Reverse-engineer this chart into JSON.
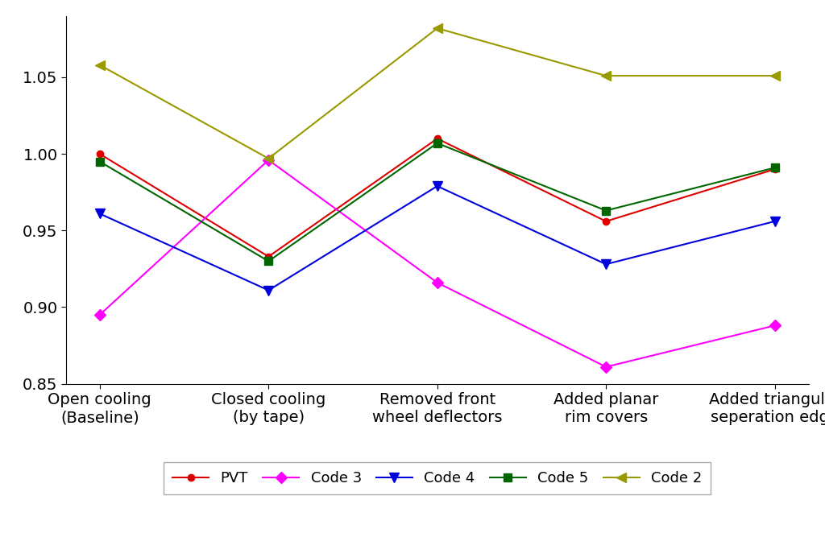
{
  "x_labels": [
    "Open cooling\n(Baseline)",
    "Closed cooling\n(by tape)",
    "Removed front\nwheel deflectors",
    "Added planar\nrim covers",
    "Added triangular\nseperation edge"
  ],
  "series": {
    "PVT": {
      "values": [
        1.0,
        0.933,
        1.01,
        0.956,
        0.99
      ],
      "color": "#dd0000",
      "marker": "o",
      "markersize": 6,
      "linewidth": 1.5
    },
    "Code 3": {
      "values": [
        0.895,
        0.996,
        0.916,
        0.861,
        0.888
      ],
      "color": "#ff00ff",
      "marker": "D",
      "markersize": 7,
      "linewidth": 1.5
    },
    "Code 4": {
      "values": [
        0.961,
        0.911,
        0.979,
        0.928,
        0.956
      ],
      "color": "#0000dd",
      "marker": "v",
      "markersize": 8,
      "linewidth": 1.5
    },
    "Code 5": {
      "values": [
        0.995,
        0.93,
        1.007,
        0.963,
        0.991
      ],
      "color": "#006600",
      "marker": "s",
      "markersize": 7,
      "linewidth": 1.5
    },
    "Code 2": {
      "values": [
        1.058,
        0.997,
        1.082,
        1.051,
        1.051
      ],
      "color": "#999900",
      "marker": "<",
      "markersize": 8,
      "linewidth": 1.5
    }
  },
  "ylim": [
    0.85,
    1.09
  ],
  "yticks": [
    0.85,
    0.9,
    0.95,
    1.0,
    1.05
  ],
  "background_color": "#ffffff",
  "legend_order": [
    "PVT",
    "Code 3",
    "Code 4",
    "Code 5",
    "Code 2"
  ],
  "tick_fontsize": 14,
  "legend_fontsize": 13
}
